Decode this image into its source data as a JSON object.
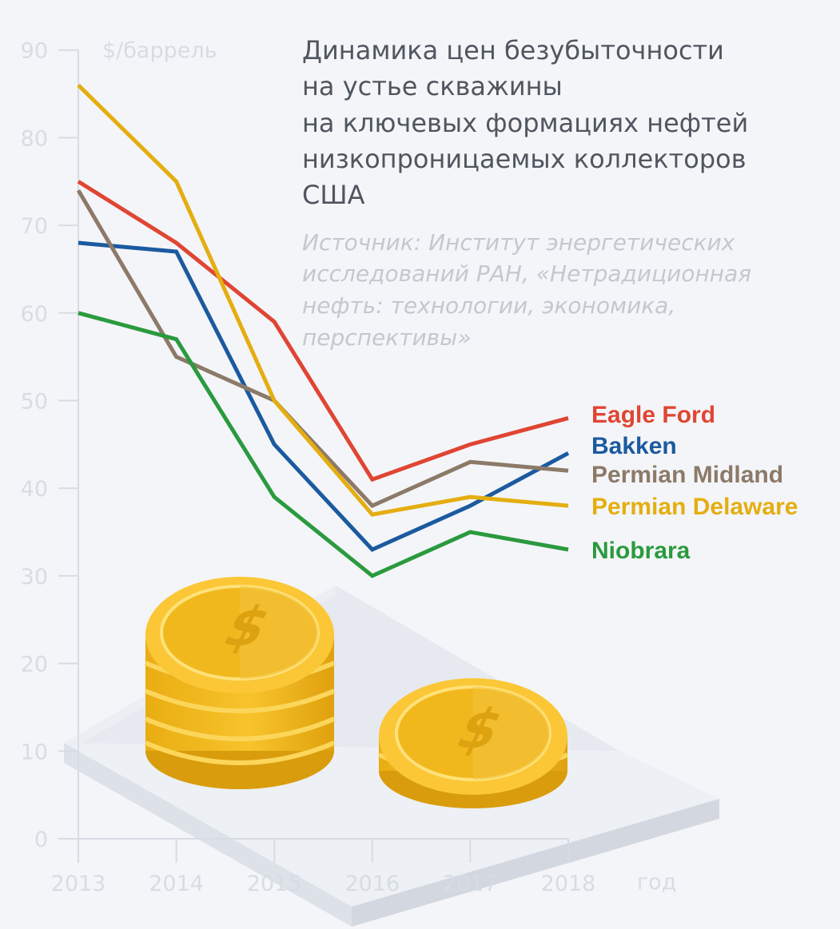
{
  "title_lines": [
    "Динамика цен безубыточности",
    "на устье скважины",
    "на ключевых формациях нефтей",
    "низкопроницаемых коллекторов",
    "США"
  ],
  "source_lines": [
    "Источник: Институт энергетических",
    "исследований РАН, «Нетрадиционная",
    "нефть: технологии, экономика,",
    "перспективы»"
  ],
  "chart_data": {
    "type": "line",
    "title": "Динамика цен безубыточности на устье скважины на ключевых формациях нефтей низкопроницаемых коллекторов США",
    "xlabel": "год",
    "ylabel": "$/баррель",
    "x": [
      "2013",
      "2014",
      "2015",
      "2016",
      "2017",
      "2018"
    ],
    "y_ticks": [
      "0",
      "10",
      "20",
      "30",
      "40",
      "50",
      "60",
      "70",
      "80",
      "90"
    ],
    "ylim": [
      0,
      90
    ],
    "grid": false,
    "legend_position": "right",
    "series": [
      {
        "name": "Eagle Ford",
        "color": "#e04533",
        "values": [
          75,
          68,
          59,
          41,
          45,
          48
        ]
      },
      {
        "name": "Bakken",
        "color": "#1b5aa0",
        "values": [
          68,
          67,
          45,
          33,
          38,
          44
        ]
      },
      {
        "name": "Permian Midland",
        "color": "#8c7a68",
        "values": [
          74,
          55,
          50,
          38,
          43,
          42
        ]
      },
      {
        "name": "Permian Delaware",
        "color": "#e4ae10",
        "values": [
          86,
          75,
          50,
          37,
          39,
          38
        ]
      },
      {
        "name": "Niobrara",
        "color": "#2a9a3e",
        "values": [
          60,
          57,
          39,
          30,
          35,
          33
        ]
      }
    ]
  }
}
